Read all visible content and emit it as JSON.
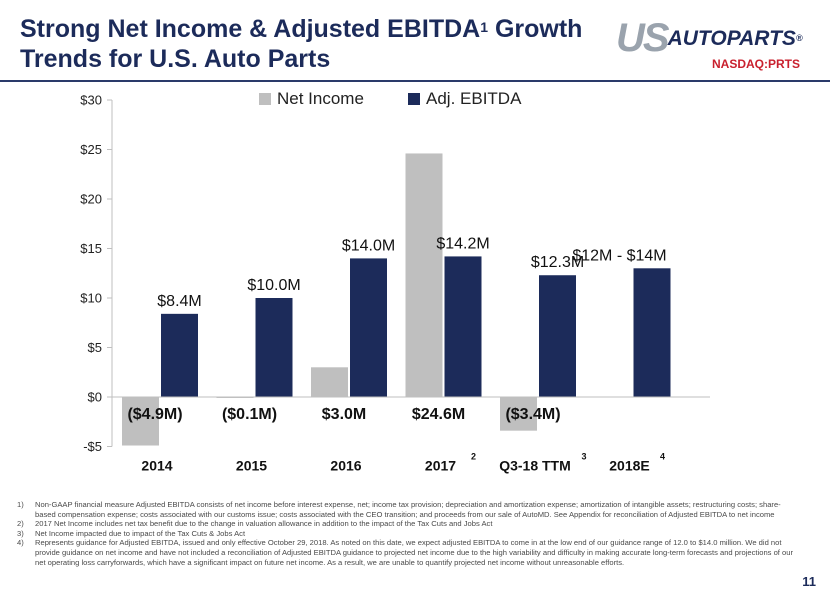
{
  "header": {
    "title_line1": "Strong Net Income & Adjusted EBITDA",
    "title_sup": "1",
    "title_line1_tail": " Growth",
    "title_line2": "Trends for U.S. Auto Parts",
    "logo_us": "US",
    "logo_rest": "AUTOPARTS",
    "logo_reg": "®",
    "ticker": "NASDAQ:PRTS"
  },
  "colors": {
    "net_income": "#bfbfbf",
    "ebitda": "#1c2b5a",
    "title": "#1c2b5a",
    "ticker": "#c9202e"
  },
  "chart_data": {
    "type": "bar",
    "title": "",
    "xlabel": "",
    "ylabel": "",
    "ylim": [
      -5,
      30
    ],
    "yticks": [
      -5,
      0,
      5,
      10,
      15,
      20,
      25,
      30
    ],
    "ytick_labels": [
      "-$5",
      "$0",
      "$5",
      "$10",
      "$15",
      "$20",
      "$25",
      "$30"
    ],
    "legend_position": "top",
    "categories": [
      "2014",
      "2015",
      "2016",
      "2017",
      "Q3-18 TTM",
      "2018E"
    ],
    "category_sups": [
      "",
      "",
      "",
      "2",
      "3",
      "4"
    ],
    "series": [
      {
        "name": "Net Income",
        "values": [
          -4.9,
          -0.1,
          3.0,
          24.6,
          -3.4,
          null
        ],
        "labels": [
          "($4.9M)",
          "($0.1M)",
          "$3.0M",
          "$24.6M",
          "($3.4M)",
          ""
        ]
      },
      {
        "name": "Adj. EBITDA",
        "values": [
          8.4,
          10.0,
          14.0,
          14.2,
          12.3,
          13.0
        ],
        "labels": [
          "$8.4M",
          "$10.0M",
          "$14.0M",
          "$14.2M",
          "$12.3M",
          "$12M - $14M"
        ]
      }
    ]
  },
  "footnotes": [
    {
      "num": "1)",
      "text": "Non-GAAP financial measure Adjusted EBITDA consists of net income before interest expense, net; income tax provision; depreciation and amortization expense; amortization of intangible assets; restructuring costs; share-based compensation expense; costs associated with our customs issue; costs associated with the CEO transition; and proceeds from our sale of AutoMD. See Appendix for reconciliation of Adjusted EBITDA to net income"
    },
    {
      "num": "2)",
      "text": "2017 Net Income includes net tax benefit due to the change in valuation allowance in addition to the impact of the Tax Cuts and Jobs Act"
    },
    {
      "num": "3)",
      "text": "Net Income impacted due to impact of the Tax Cuts & Jobs Act"
    },
    {
      "num": "4)",
      "text": "Represents guidance for Adjusted EBITDA, issued and only effective October 29, 2018. As noted on this date, we expect adjusted EBITDA to come in at the low end of our guidance range of 12.0 to $14.0 million. We did not provide guidance on net income and have not included a reconciliation of Adjusted EBITDA guidance to projected net income due to the high variability and difficulty in making accurate long-term forecasts and projections of our net operating loss carryforwards, which have a significant impact on future net income.  As a result, we are unable to quantify projected net income without unreasonable efforts."
    }
  ],
  "page_number": "11"
}
